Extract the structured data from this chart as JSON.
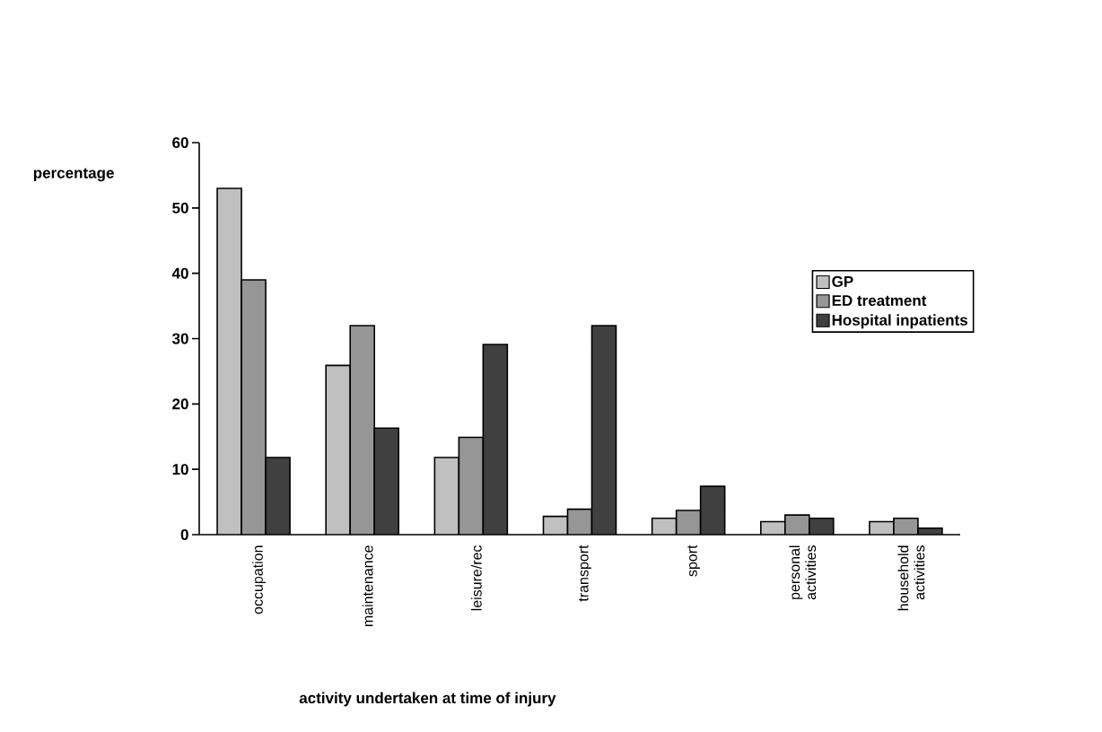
{
  "chart_data": {
    "type": "bar",
    "xlabel": "activity undertaken at time of injury",
    "ylabel": "percentage",
    "categories": [
      "occupation",
      "maintenance",
      "leisure/rec",
      "transport",
      "sport",
      "personal activities",
      "household activities"
    ],
    "series": [
      {
        "name": "GP",
        "color": "#c0c0c0",
        "values": [
          53,
          25.9,
          11.8,
          2.8,
          2.5,
          2.0,
          2.0
        ]
      },
      {
        "name": "ED treatment",
        "color": "#969696",
        "values": [
          39,
          32,
          14.9,
          3.9,
          3.7,
          3.0,
          2.5
        ]
      },
      {
        "name": "Hospital inpatients",
        "color": "#404040",
        "values": [
          11.8,
          16.3,
          29.1,
          32,
          7.4,
          2.5,
          1.0
        ]
      }
    ],
    "ylim": [
      0,
      60
    ],
    "yticks": [
      0,
      10,
      20,
      30,
      40,
      50,
      60
    ],
    "grid": false,
    "legend": "right"
  }
}
